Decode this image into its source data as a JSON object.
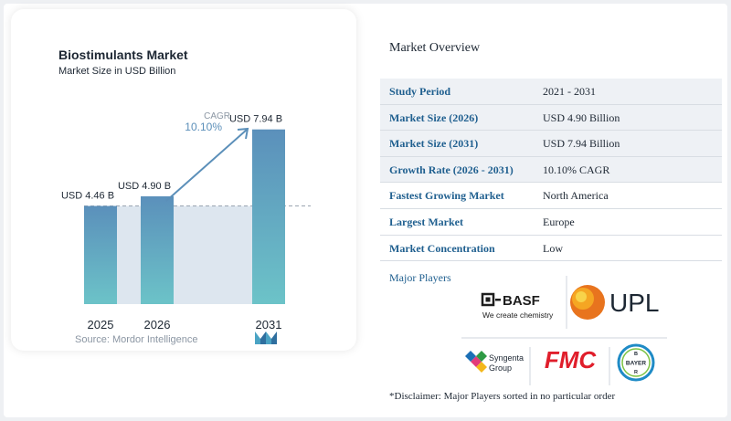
{
  "chart": {
    "title": "Biostimulants Market",
    "subtitle": "Market Size in USD Billion",
    "source": "Source: Mordor Intelligence",
    "cagr_label": "CAGR",
    "cagr_value": "10.10%"
  },
  "chart_data": {
    "type": "bar",
    "categories": [
      "2025",
      "2026",
      "2031"
    ],
    "values": [
      4.46,
      4.9,
      7.94
    ],
    "data_labels": [
      "USD 4.46 B",
      "USD 4.90 B",
      "USD 7.94 B"
    ],
    "title": "Biostimulants Market",
    "subtitle": "Market Size in USD Billion",
    "xlabel": "",
    "ylabel": "",
    "ylim": [
      0,
      8.8
    ],
    "grid": false,
    "annotation": "CAGR 10.10%",
    "colors": {
      "bar_top": "#5b90bb",
      "bar_bottom": "#6cc3c8",
      "band": "#dde6ef",
      "reference_line": "#9aa5b1",
      "arrow": "#5b8fb9"
    }
  },
  "overview": {
    "title": "Market Overview",
    "rows": [
      {
        "label": "Study Period",
        "value": "2021 - 2031"
      },
      {
        "label": "Market Size (2026)",
        "value": "USD 4.90 Billion"
      },
      {
        "label": "Market Size (2031)",
        "value": "USD 7.94 Billion"
      },
      {
        "label": "Growth Rate (2026 - 2031)",
        "value": "10.10% CAGR"
      },
      {
        "label": "Fastest Growing Market",
        "value": "North America"
      },
      {
        "label": "Largest Market",
        "value": "Europe"
      },
      {
        "label": "Market Concentration",
        "value": "Low"
      }
    ]
  },
  "players": {
    "title": "Major Players",
    "basf_name": "BASF",
    "basf_tagline": "We create chemistry",
    "upl_name": "UPL",
    "syngenta_name": "Syngenta",
    "syngenta_group": "Group",
    "fmc_name": "FMC",
    "bayer_name": "BAYER"
  },
  "disclaimer": "*Disclaimer: Major Players sorted in no particular order"
}
